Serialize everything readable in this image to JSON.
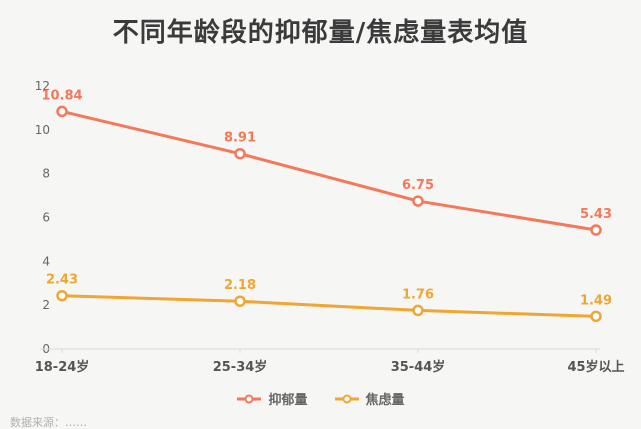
{
  "title": "不同年龄段的抑郁量/焦虑量表均值",
  "footnote": "数据来源：……",
  "chart_data": {
    "type": "line",
    "title": "不同年龄段的抑郁量/焦虑量表均值",
    "categories": [
      "18-24岁",
      "25-34岁",
      "35-44岁",
      "45岁以上"
    ],
    "series": [
      {
        "name": "抑郁量",
        "color": "#f4795b",
        "values": [
          10.84,
          8.91,
          6.75,
          5.43
        ]
      },
      {
        "name": "焦虑量",
        "color": "#f0a632",
        "values": [
          2.43,
          2.18,
          1.76,
          1.49
        ]
      }
    ],
    "xlabel": "",
    "ylabel": "",
    "ylim": [
      0,
      12
    ],
    "yticks": [
      0,
      2,
      4,
      6,
      8,
      10,
      12
    ],
    "grid": false,
    "legend_position": "bottom",
    "marker": "open-circle",
    "data_labels": true,
    "axis_color": "#d9d9d9",
    "tick_label_color": "#666666",
    "x_label_color": "#555555"
  }
}
